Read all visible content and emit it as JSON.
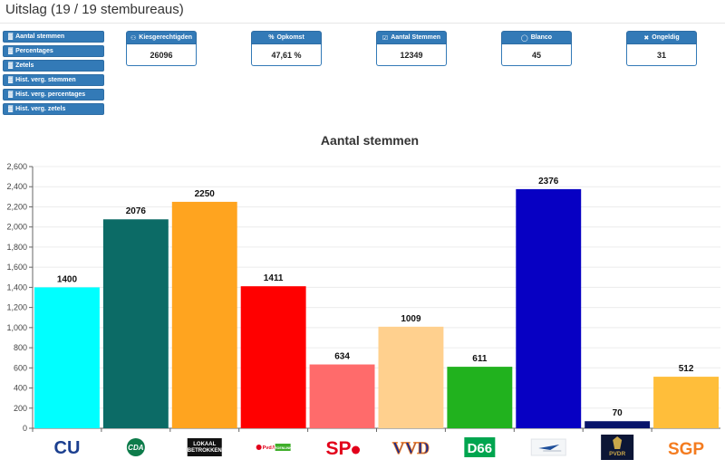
{
  "header": {
    "title": "Uitslag (19 / 19 stembureaus)"
  },
  "nav": {
    "buttons": [
      {
        "label": "Aantal stemmen",
        "icon": "bar-chart-icon"
      },
      {
        "label": "Percentages",
        "icon": "bar-chart-icon"
      },
      {
        "label": "Zetels",
        "icon": "bar-chart-icon"
      },
      {
        "label": "Hist. verg. stemmen",
        "icon": "bar-chart-icon"
      },
      {
        "label": "Hist. verg. percentages",
        "icon": "bar-chart-icon"
      },
      {
        "label": "Hist. verg. zetels",
        "icon": "bar-chart-icon"
      }
    ]
  },
  "stats": [
    {
      "label": "Kiesgerechtigden",
      "value": "26096",
      "icon": "users-icon"
    },
    {
      "label": "Opkomst",
      "value": "47,61 %",
      "icon": "percent-icon"
    },
    {
      "label": "Aantal Stemmen",
      "value": "12349",
      "icon": "checkbox-icon"
    },
    {
      "label": "Blanco",
      "value": "45",
      "icon": "circle-icon"
    },
    {
      "label": "Ongeldig",
      "value": "31",
      "icon": "close-icon"
    }
  ],
  "chart_data": {
    "type": "bar",
    "title": "Aantal stemmen",
    "categories": [
      "CU",
      "CDA",
      "LOKAAL BETROKKEN",
      "PvdA GROENLINKS",
      "SP",
      "VVD",
      "D66",
      "",
      "PVDR",
      "SGP"
    ],
    "values": [
      1400,
      2076,
      2250,
      1411,
      634,
      1009,
      611,
      2376,
      70,
      512
    ],
    "colors": [
      "#00ffff",
      "#0c6b66",
      "#ffa41f",
      "#ff0000",
      "#ff6b6b",
      "#ffd08e",
      "#21b21e",
      "#0700c3",
      "#08146a",
      "#ffbe3a"
    ],
    "ylim": [
      0,
      2600
    ],
    "yticks": [
      "0",
      "200",
      "400",
      "600",
      "800",
      "1,000",
      "1,200",
      "1,400",
      "1,600",
      "1,800",
      "2,000",
      "2,200",
      "2,400",
      "2,600"
    ],
    "grid": true,
    "legend": "none",
    "logos": [
      "CU",
      "CDA",
      "LOKAAL BETROKKEN",
      "PvdA GROENLINKS",
      "SP",
      "VVD",
      "D66",
      "",
      "PVDR",
      "SGP"
    ]
  }
}
